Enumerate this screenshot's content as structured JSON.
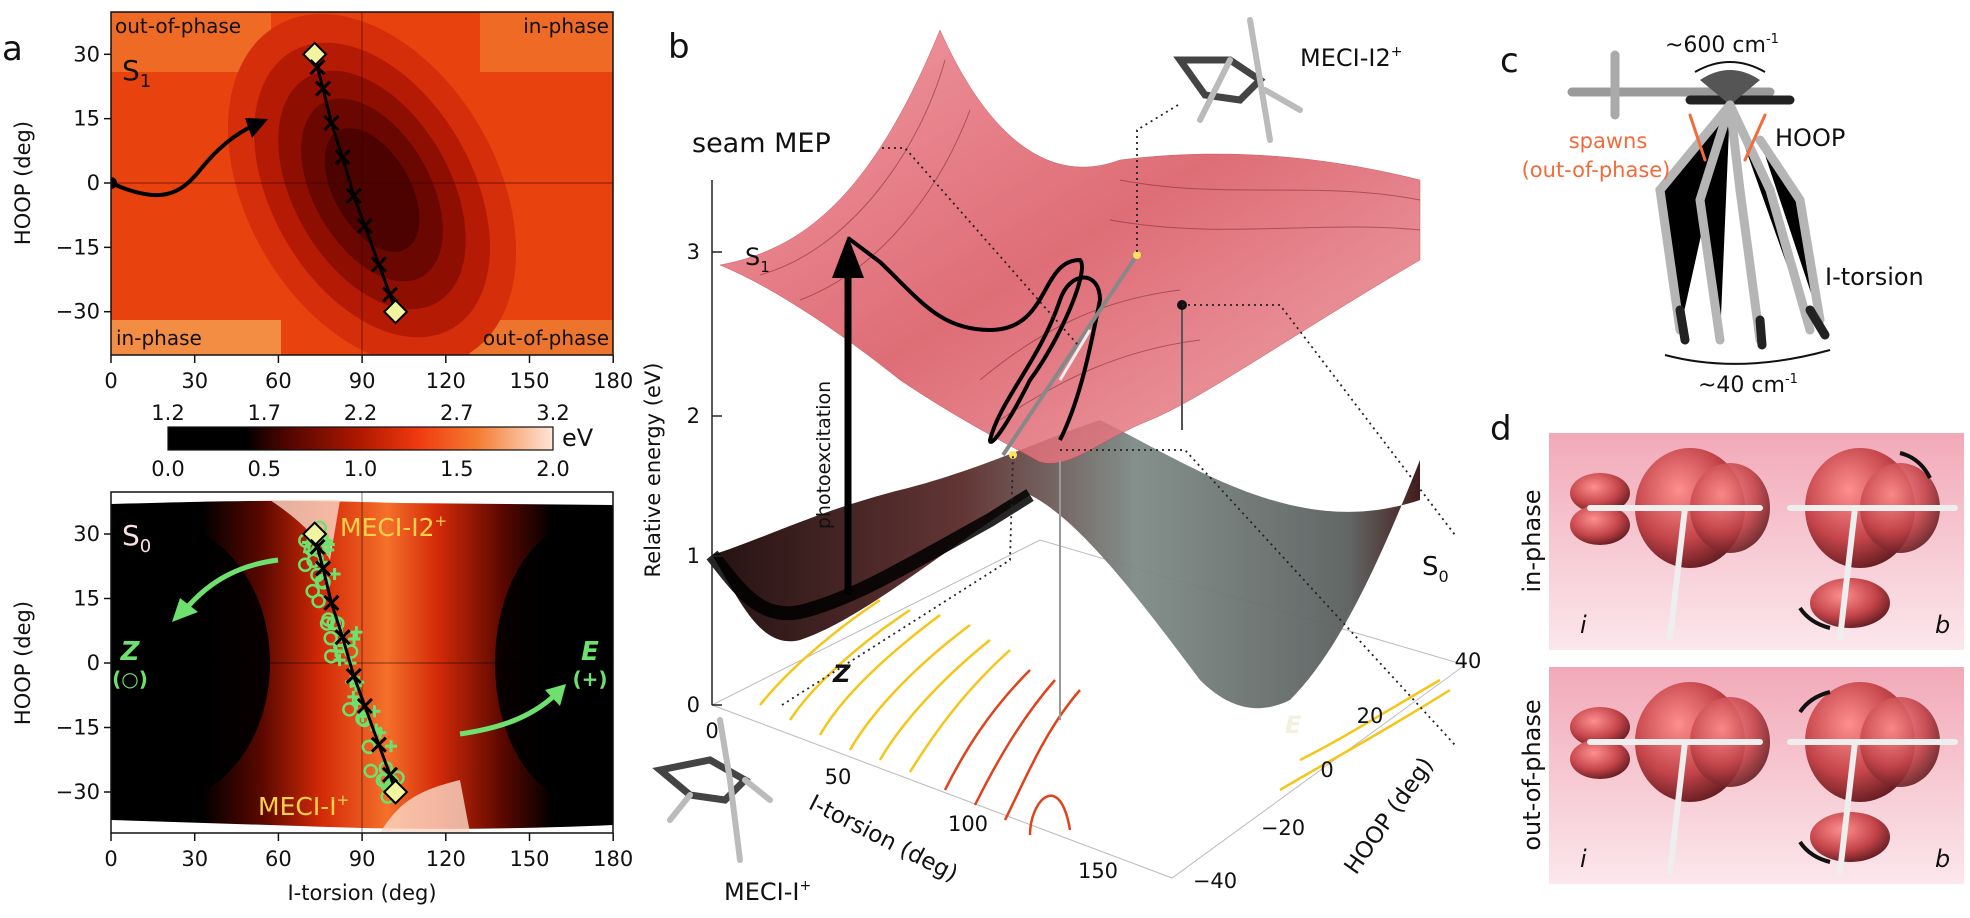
{
  "panel_a": {
    "label": "a",
    "top": {
      "state": "S",
      "state_sub": "1",
      "corner_tl": "out-of-phase",
      "corner_tr": "in-phase",
      "corner_bl": "in-phase",
      "corner_br": "out-of-phase",
      "ylabel": "HOOP (deg)"
    },
    "colorbar": {
      "top_ticks": [
        "1.2",
        "1.7",
        "2.2",
        "2.7",
        "3.2"
      ],
      "bottom_ticks": [
        "0.0",
        "0.5",
        "1.0",
        "1.5",
        "2.0"
      ],
      "unit": "eV"
    },
    "bottom": {
      "state": "S",
      "state_sub": "0",
      "meci_i2": "MECI-I2",
      "meci_i2_sup": "+",
      "meci_i": "MECI-I",
      "meci_i_sup": "+",
      "z_label": "Z",
      "z_marker": "(○)",
      "e_label": "E",
      "e_marker": "(+)",
      "ylabel": "HOOP (deg)",
      "xlabel": "I-torsion (deg)"
    },
    "xticks": [
      "0",
      "30",
      "60",
      "90",
      "120",
      "150",
      "180"
    ],
    "yticks": [
      "30",
      "15",
      "0",
      "−15",
      "−30"
    ],
    "seam_mep": [
      [
        73,
        30
      ],
      [
        74,
        27
      ],
      [
        76,
        22
      ],
      [
        79,
        14
      ],
      [
        83,
        6
      ],
      [
        87,
        -3
      ],
      [
        91,
        -10
      ],
      [
        96,
        -19
      ],
      [
        100,
        -26
      ],
      [
        102,
        -30
      ]
    ],
    "colors": {
      "accent_green": "#6ee06e",
      "meci_label": "#ffd24a"
    }
  },
  "panel_b": {
    "label": "b",
    "seam_mep": "seam MEP",
    "meci_i2": "MECI-I2",
    "meci_i2_sup": "+",
    "meci_i": "MECI-I",
    "meci_i_sup": "+",
    "s1": "S",
    "s1_sub": "1",
    "s0": "S",
    "s0_sub": "0",
    "photoexcitation": "photoexcitation",
    "z_label": "Z",
    "e_label": "E",
    "zlabel": "Relative energy (eV)",
    "zticks": [
      "3",
      "2",
      "1",
      "0"
    ],
    "xlabel": "I-torsion (deg)",
    "xticks": [
      "0",
      "50",
      "100",
      "150"
    ],
    "ylabel": "HOOP (deg)",
    "yticks": [
      "−40",
      "−20",
      "0",
      "20",
      "40"
    ]
  },
  "panel_c": {
    "label": "c",
    "freq_high": "~600 cm",
    "freq_high_sup": "-1",
    "freq_low": "~40 cm",
    "freq_low_sup": "-1",
    "spawns": "spawns",
    "spawns_note": "(out-of-phase)",
    "hoop": "HOOP",
    "itorsion": "I-torsion",
    "colors": {
      "spawns": "#f26b3a"
    }
  },
  "panel_d": {
    "label": "d",
    "rows": [
      {
        "label": "in-phase",
        "left": "i",
        "right": "b"
      },
      {
        "label": "out-of-phase",
        "left": "i",
        "right": "b"
      }
    ]
  }
}
